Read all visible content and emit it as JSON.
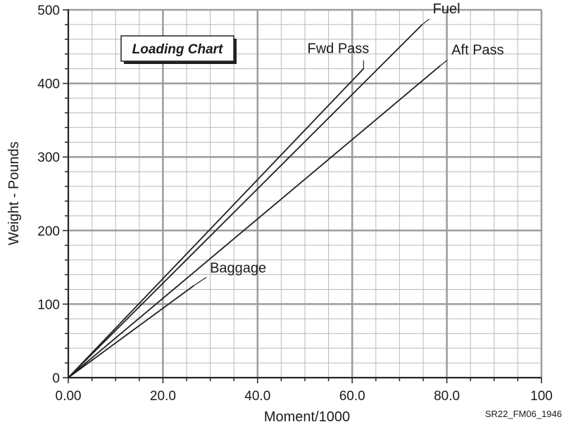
{
  "chart_data": {
    "type": "line",
    "title": "Loading Chart",
    "xlabel": "Moment/1000",
    "ylabel": "Weight - Pounds",
    "xlim": [
      0,
      100
    ],
    "ylim": [
      0,
      500
    ],
    "x_ticks": [
      0,
      20,
      40,
      60,
      80,
      100
    ],
    "y_ticks": [
      0,
      100,
      200,
      300,
      400,
      500
    ],
    "x_tick_labels": [
      "0.00",
      "20.0",
      "40.0",
      "60.0",
      "80.0",
      "100"
    ],
    "y_tick_labels": [
      "0",
      "100",
      "200",
      "300",
      "400",
      "500"
    ],
    "grid": true,
    "series": [
      {
        "name": "Fwd Pass",
        "x": [
          0,
          62.4
        ],
        "y": [
          0,
          420
        ]
      },
      {
        "name": "Fuel",
        "x": [
          0,
          74.8
        ],
        "y": [
          0,
          480
        ]
      },
      {
        "name": "Aft Pass",
        "x": [
          0,
          78.6
        ],
        "y": [
          0,
          424
        ]
      },
      {
        "name": "Baggage",
        "x": [
          0,
          26.5
        ],
        "y": [
          0,
          125
        ]
      }
    ],
    "figure_id": "SR22_FM06_1946"
  }
}
